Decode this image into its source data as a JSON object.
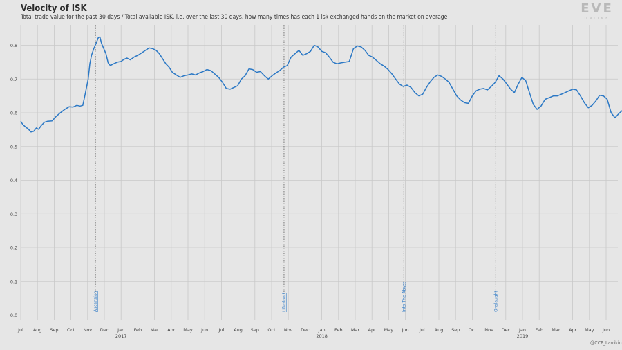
{
  "page": {
    "title": "Velocity of ISK",
    "subtitle": "Total trade value for the past 30 days / Total available ISK, i.e. over the last 30 days, how many times has each 1 isk exchanged hands on the market on average",
    "logo_text": "EVE",
    "logo_subtext": "ONLINE",
    "credit": "@CCP_Larrikin"
  },
  "colors": {
    "background": "#e6e6e6",
    "line": "#2b78c5",
    "grid": "#c8c8c8",
    "annotation": "#3a80c8"
  },
  "chart_data": {
    "type": "line",
    "title": "Velocity of ISK",
    "xlabel": "",
    "ylabel": "",
    "ylim": [
      0,
      0.85
    ],
    "yticks": [
      0.0,
      0.1,
      0.2,
      0.3,
      0.4,
      0.5,
      0.6,
      0.7,
      0.8
    ],
    "grid": true,
    "x_start": "2016-07",
    "x_end": "2019-07",
    "month_ticks": [
      {
        "label": "Jul",
        "year": ""
      },
      {
        "label": "Aug",
        "year": ""
      },
      {
        "label": "Sep",
        "year": ""
      },
      {
        "label": "Oct",
        "year": ""
      },
      {
        "label": "Nov",
        "year": ""
      },
      {
        "label": "Dec",
        "year": ""
      },
      {
        "label": "Jan",
        "year": "2017"
      },
      {
        "label": "Feb",
        "year": ""
      },
      {
        "label": "Mar",
        "year": ""
      },
      {
        "label": "Apr",
        "year": ""
      },
      {
        "label": "May",
        "year": ""
      },
      {
        "label": "Jun",
        "year": ""
      },
      {
        "label": "Jul",
        "year": ""
      },
      {
        "label": "Aug",
        "year": ""
      },
      {
        "label": "Sep",
        "year": ""
      },
      {
        "label": "Oct",
        "year": ""
      },
      {
        "label": "Nov",
        "year": ""
      },
      {
        "label": "Dec",
        "year": ""
      },
      {
        "label": "Jan",
        "year": "2018"
      },
      {
        "label": "Feb",
        "year": ""
      },
      {
        "label": "Mar",
        "year": ""
      },
      {
        "label": "Apr",
        "year": ""
      },
      {
        "label": "May",
        "year": ""
      },
      {
        "label": "Jun",
        "year": ""
      },
      {
        "label": "Jul",
        "year": ""
      },
      {
        "label": "Aug",
        "year": ""
      },
      {
        "label": "Sep",
        "year": ""
      },
      {
        "label": "Oct",
        "year": ""
      },
      {
        "label": "Nov",
        "year": ""
      },
      {
        "label": "Dec",
        "year": ""
      },
      {
        "label": "Jan",
        "year": "2019"
      },
      {
        "label": "Feb",
        "year": ""
      },
      {
        "label": "Mar",
        "year": ""
      },
      {
        "label": "Apr",
        "year": ""
      },
      {
        "label": "May",
        "year": ""
      },
      {
        "label": "Jun",
        "year": ""
      }
    ],
    "annotations": [
      {
        "x": "2016-11-15",
        "label": "Ascension"
      },
      {
        "x": "2017-10-24",
        "label": "Lifeblood"
      },
      {
        "x": "2018-05-29",
        "label": "Into The Abyss"
      },
      {
        "x": "2018-11-13",
        "label": "Onslaught"
      }
    ],
    "series": [
      {
        "points": [
          [
            "2016-07-01",
            0.575
          ],
          [
            "2016-07-05",
            0.565
          ],
          [
            "2016-07-10",
            0.558
          ],
          [
            "2016-07-15",
            0.552
          ],
          [
            "2016-07-20",
            0.543
          ],
          [
            "2016-07-25",
            0.545
          ],
          [
            "2016-07-30",
            0.555
          ],
          [
            "2016-08-03",
            0.551
          ],
          [
            "2016-08-08",
            0.562
          ],
          [
            "2016-08-14",
            0.572
          ],
          [
            "2016-08-20",
            0.575
          ],
          [
            "2016-08-28",
            0.576
          ],
          [
            "2016-09-05",
            0.59
          ],
          [
            "2016-09-12",
            0.6
          ],
          [
            "2016-09-20",
            0.61
          ],
          [
            "2016-09-28",
            0.618
          ],
          [
            "2016-10-05",
            0.617
          ],
          [
            "2016-10-12",
            0.622
          ],
          [
            "2016-10-18",
            0.62
          ],
          [
            "2016-10-23",
            0.622
          ],
          [
            "2016-10-28",
            0.66
          ],
          [
            "2016-11-02",
            0.7
          ],
          [
            "2016-11-05",
            0.745
          ],
          [
            "2016-11-08",
            0.77
          ],
          [
            "2016-11-12",
            0.79
          ],
          [
            "2016-11-16",
            0.805
          ],
          [
            "2016-11-20",
            0.822
          ],
          [
            "2016-11-23",
            0.825
          ],
          [
            "2016-11-26",
            0.805
          ],
          [
            "2016-11-30",
            0.79
          ],
          [
            "2016-12-04",
            0.775
          ],
          [
            "2016-12-08",
            0.748
          ],
          [
            "2016-12-12",
            0.74
          ],
          [
            "2016-12-18",
            0.745
          ],
          [
            "2016-12-25",
            0.75
          ],
          [
            "2017-01-01",
            0.752
          ],
          [
            "2017-01-06",
            0.758
          ],
          [
            "2017-01-12",
            0.762
          ],
          [
            "2017-01-18",
            0.757
          ],
          [
            "2017-01-25",
            0.765
          ],
          [
            "2017-02-01",
            0.77
          ],
          [
            "2017-02-08",
            0.778
          ],
          [
            "2017-02-14",
            0.785
          ],
          [
            "2017-02-20",
            0.792
          ],
          [
            "2017-02-26",
            0.79
          ],
          [
            "2017-03-04",
            0.785
          ],
          [
            "2017-03-10",
            0.775
          ],
          [
            "2017-03-16",
            0.76
          ],
          [
            "2017-03-22",
            0.745
          ],
          [
            "2017-03-28",
            0.735
          ],
          [
            "2017-04-03",
            0.72
          ],
          [
            "2017-04-10",
            0.712
          ],
          [
            "2017-04-17",
            0.705
          ],
          [
            "2017-04-24",
            0.71
          ],
          [
            "2017-05-01",
            0.712
          ],
          [
            "2017-05-08",
            0.715
          ],
          [
            "2017-05-15",
            0.712
          ],
          [
            "2017-05-22",
            0.718
          ],
          [
            "2017-05-29",
            0.722
          ],
          [
            "2017-06-05",
            0.728
          ],
          [
            "2017-06-12",
            0.725
          ],
          [
            "2017-06-19",
            0.715
          ],
          [
            "2017-06-26",
            0.705
          ],
          [
            "2017-07-03",
            0.69
          ],
          [
            "2017-07-10",
            0.672
          ],
          [
            "2017-07-17",
            0.67
          ],
          [
            "2017-07-24",
            0.675
          ],
          [
            "2017-07-31",
            0.68
          ],
          [
            "2017-08-07",
            0.7
          ],
          [
            "2017-08-14",
            0.71
          ],
          [
            "2017-08-21",
            0.73
          ],
          [
            "2017-08-28",
            0.728
          ],
          [
            "2017-09-04",
            0.72
          ],
          [
            "2017-09-11",
            0.722
          ],
          [
            "2017-09-18",
            0.71
          ],
          [
            "2017-09-25",
            0.7
          ],
          [
            "2017-10-02",
            0.71
          ],
          [
            "2017-10-09",
            0.718
          ],
          [
            "2017-10-16",
            0.725
          ],
          [
            "2017-10-23",
            0.735
          ],
          [
            "2017-10-30",
            0.74
          ],
          [
            "2017-11-06",
            0.765
          ],
          [
            "2017-11-13",
            0.775
          ],
          [
            "2017-11-20",
            0.785
          ],
          [
            "2017-11-27",
            0.77
          ],
          [
            "2017-12-04",
            0.775
          ],
          [
            "2017-12-11",
            0.782
          ],
          [
            "2017-12-18",
            0.8
          ],
          [
            "2017-12-25",
            0.795
          ],
          [
            "2018-01-01",
            0.782
          ],
          [
            "2018-01-08",
            0.778
          ],
          [
            "2018-01-15",
            0.765
          ],
          [
            "2018-01-22",
            0.75
          ],
          [
            "2018-01-29",
            0.745
          ],
          [
            "2018-02-05",
            0.748
          ],
          [
            "2018-02-12",
            0.75
          ],
          [
            "2018-02-19",
            0.752
          ],
          [
            "2018-02-26",
            0.79
          ],
          [
            "2018-03-05",
            0.798
          ],
          [
            "2018-03-12",
            0.795
          ],
          [
            "2018-03-19",
            0.785
          ],
          [
            "2018-03-26",
            0.77
          ],
          [
            "2018-04-02",
            0.765
          ],
          [
            "2018-04-09",
            0.755
          ],
          [
            "2018-04-16",
            0.745
          ],
          [
            "2018-04-23",
            0.738
          ],
          [
            "2018-04-30",
            0.728
          ],
          [
            "2018-05-07",
            0.715
          ],
          [
            "2018-05-14",
            0.7
          ],
          [
            "2018-05-21",
            0.685
          ],
          [
            "2018-05-28",
            0.678
          ],
          [
            "2018-06-04",
            0.682
          ],
          [
            "2018-06-11",
            0.675
          ],
          [
            "2018-06-18",
            0.66
          ],
          [
            "2018-06-25",
            0.65
          ],
          [
            "2018-07-02",
            0.655
          ],
          [
            "2018-07-09",
            0.675
          ],
          [
            "2018-07-16",
            0.692
          ],
          [
            "2018-07-23",
            0.705
          ],
          [
            "2018-07-30",
            0.712
          ],
          [
            "2018-08-06",
            0.708
          ],
          [
            "2018-08-13",
            0.7
          ],
          [
            "2018-08-20",
            0.69
          ],
          [
            "2018-08-27",
            0.67
          ],
          [
            "2018-09-03",
            0.65
          ],
          [
            "2018-09-10",
            0.638
          ],
          [
            "2018-09-17",
            0.63
          ],
          [
            "2018-09-24",
            0.628
          ],
          [
            "2018-10-01",
            0.65
          ],
          [
            "2018-10-08",
            0.665
          ],
          [
            "2018-10-15",
            0.67
          ],
          [
            "2018-10-22",
            0.672
          ],
          [
            "2018-10-29",
            0.668
          ],
          [
            "2018-11-05",
            0.678
          ],
          [
            "2018-11-12",
            0.69
          ],
          [
            "2018-11-19",
            0.71
          ],
          [
            "2018-11-26",
            0.7
          ],
          [
            "2018-12-03",
            0.685
          ],
          [
            "2018-12-10",
            0.67
          ],
          [
            "2018-12-17",
            0.66
          ],
          [
            "2018-12-24",
            0.685
          ],
          [
            "2018-12-31",
            0.705
          ],
          [
            "2019-01-07",
            0.695
          ],
          [
            "2019-01-14",
            0.66
          ],
          [
            "2019-01-21",
            0.625
          ],
          [
            "2019-01-28",
            0.61
          ],
          [
            "2019-02-04",
            0.62
          ],
          [
            "2019-02-11",
            0.64
          ],
          [
            "2019-02-18",
            0.645
          ],
          [
            "2019-02-25",
            0.65
          ],
          [
            "2019-03-04",
            0.65
          ],
          [
            "2019-03-11",
            0.655
          ],
          [
            "2019-03-18",
            0.66
          ],
          [
            "2019-03-25",
            0.665
          ],
          [
            "2019-04-01",
            0.67
          ],
          [
            "2019-04-08",
            0.668
          ],
          [
            "2019-04-15",
            0.65
          ],
          [
            "2019-04-22",
            0.63
          ],
          [
            "2019-04-29",
            0.615
          ],
          [
            "2019-05-06",
            0.622
          ],
          [
            "2019-05-13",
            0.635
          ],
          [
            "2019-05-20",
            0.652
          ],
          [
            "2019-05-27",
            0.65
          ],
          [
            "2019-06-03",
            0.64
          ],
          [
            "2019-06-10",
            0.6
          ],
          [
            "2019-06-17",
            0.585
          ],
          [
            "2019-06-24",
            0.598
          ],
          [
            "2019-07-01",
            0.608
          ],
          [
            "2019-07-05",
            0.605
          ]
        ]
      }
    ]
  }
}
